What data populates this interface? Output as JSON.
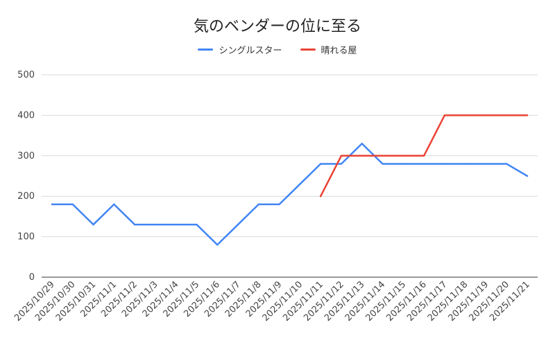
{
  "chart_data": {
    "type": "line",
    "title": "気のベンダーの位に至る",
    "xlabel": "",
    "ylabel": "",
    "ylim": [
      0,
      500
    ],
    "yticks": [
      0,
      100,
      200,
      300,
      400,
      500
    ],
    "grid": "horizontal",
    "legend": "top-center",
    "categories": [
      "2025/10/29",
      "2025/10/30",
      "2025/10/31",
      "2025/11/1",
      "2025/11/2",
      "2025/11/3",
      "2025/11/4",
      "2025/11/5",
      "2025/11/6",
      "2025/11/7",
      "2025/11/8",
      "2025/11/9",
      "2025/11/10",
      "2025/11/11",
      "2025/11/12",
      "2025/11/13",
      "2025/11/14",
      "2025/11/15",
      "2025/11/16",
      "2025/11/17",
      "2025/11/18",
      "2025/11/19",
      "2025/11/20",
      "2025/11/21"
    ],
    "series": [
      {
        "name": "シングルスター",
        "color": "#4285f4",
        "values": [
          180,
          180,
          130,
          180,
          130,
          130,
          130,
          130,
          80,
          130,
          180,
          180,
          230,
          280,
          280,
          330,
          280,
          280,
          280,
          280,
          280,
          280,
          280,
          250
        ]
      },
      {
        "name": "晴れる屋",
        "color": "#ea4335",
        "values": [
          null,
          null,
          null,
          null,
          null,
          null,
          null,
          null,
          null,
          null,
          null,
          null,
          null,
          200,
          300,
          300,
          300,
          300,
          300,
          400,
          400,
          400,
          400,
          400
        ]
      }
    ]
  }
}
